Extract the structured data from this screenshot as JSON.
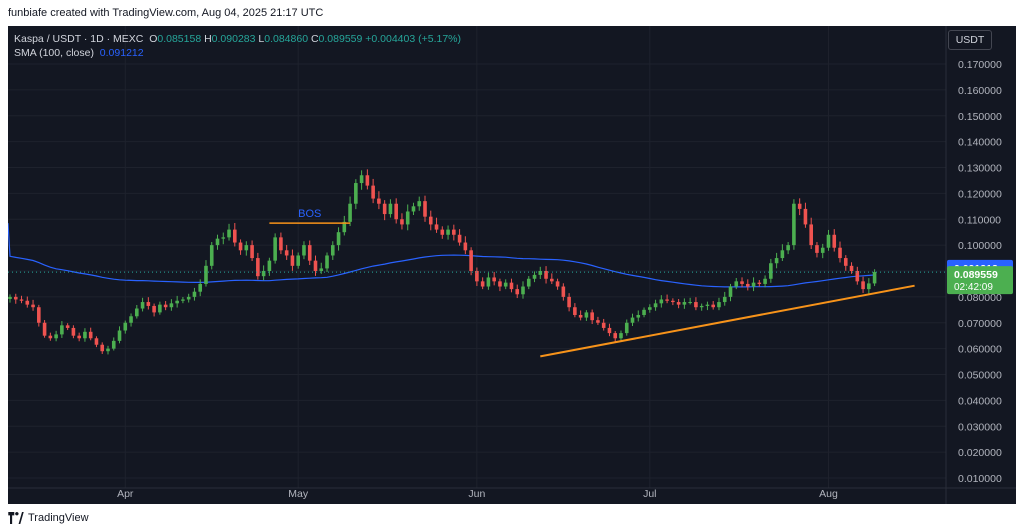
{
  "header": {
    "credit": "funbiafe created with TradingView.com, Aug 04, 2025 21:17 UTC"
  },
  "footer": {
    "brand": "TradingView"
  },
  "legend": {
    "symbol": "Kaspa / USDT · 1D · MEXC",
    "open_label": "O",
    "open": "0.085158",
    "high_label": "H",
    "high": "0.090283",
    "low_label": "L",
    "low": "0.084860",
    "close_label": "C",
    "close": "0.089559",
    "change": "+0.004403 (+5.17%)",
    "sma_label": "SMA (100, close)",
    "sma_value": "0.091212"
  },
  "currency": "USDT",
  "colors": {
    "background": "#131722",
    "up": "#26a69a",
    "up_body": "#4caf50",
    "down": "#ef5350",
    "sma": "#2962ff",
    "trendline": "#f7931a",
    "bos_line": "#f7931a",
    "bos_text": "#2962ff",
    "grid": "#1e222d"
  },
  "chart_data": {
    "type": "candlestick",
    "symbol": "Kaspa / USDT",
    "timeframe": "1D",
    "exchange": "MEXC",
    "y_axis": {
      "ticks": [
        "0.170000",
        "0.160000",
        "0.150000",
        "0.140000",
        "0.130000",
        "0.120000",
        "0.110000",
        "0.100000",
        "0.090000",
        "0.080000",
        "0.070000",
        "0.060000",
        "0.050000",
        "0.040000",
        "0.030000",
        "0.020000",
        "0.010000"
      ],
      "ylim": [
        0.01,
        0.175
      ]
    },
    "x_axis": {
      "labels": [
        "Apr",
        "May",
        "Jun",
        "Jul",
        "Aug"
      ],
      "range_dates": [
        "2025-03-12",
        "2025-08-20"
      ],
      "label_dates": [
        "2025-04-01",
        "2025-05-01",
        "2025-06-01",
        "2025-07-01",
        "2025-08-01"
      ]
    },
    "last_price": {
      "value": "0.089559",
      "countdown": "02:42:09"
    },
    "sma_price": {
      "value": "0.091212"
    },
    "annotations": [
      {
        "text": "BOS",
        "level": 0.1085,
        "from": "2025-04-26",
        "to": "2025-05-10"
      }
    ],
    "trendline": {
      "from": [
        "2025-06-12",
        0.057
      ],
      "to": [
        "2025-08-09",
        0.082
      ]
    },
    "closes": [
      [
        "2025-03-12",
        0.08
      ],
      [
        "2025-03-13",
        0.079
      ],
      [
        "2025-03-14",
        0.0785
      ],
      [
        "2025-03-15",
        0.077
      ],
      [
        "2025-03-16",
        0.076
      ],
      [
        "2025-03-17",
        0.07
      ],
      [
        "2025-03-18",
        0.065
      ],
      [
        "2025-03-19",
        0.064
      ],
      [
        "2025-03-20",
        0.0655
      ],
      [
        "2025-03-21",
        0.069
      ],
      [
        "2025-03-22",
        0.068
      ],
      [
        "2025-03-23",
        0.065
      ],
      [
        "2025-03-24",
        0.064
      ],
      [
        "2025-03-25",
        0.0665
      ],
      [
        "2025-03-26",
        0.064
      ],
      [
        "2025-03-27",
        0.0615
      ],
      [
        "2025-03-28",
        0.059
      ],
      [
        "2025-03-29",
        0.06
      ],
      [
        "2025-03-30",
        0.063
      ],
      [
        "2025-03-31",
        0.067
      ],
      [
        "2025-04-01",
        0.07
      ],
      [
        "2025-04-02",
        0.0725
      ],
      [
        "2025-04-03",
        0.0755
      ],
      [
        "2025-04-04",
        0.078
      ],
      [
        "2025-04-05",
        0.0765
      ],
      [
        "2025-04-06",
        0.074
      ],
      [
        "2025-04-07",
        0.077
      ],
      [
        "2025-04-08",
        0.076
      ],
      [
        "2025-04-09",
        0.0775
      ],
      [
        "2025-04-10",
        0.0785
      ],
      [
        "2025-04-11",
        0.079
      ],
      [
        "2025-04-12",
        0.08
      ],
      [
        "2025-04-13",
        0.082
      ],
      [
        "2025-04-14",
        0.085
      ],
      [
        "2025-04-15",
        0.092
      ],
      [
        "2025-04-16",
        0.1
      ],
      [
        "2025-04-17",
        0.1025
      ],
      [
        "2025-04-18",
        0.103
      ],
      [
        "2025-04-19",
        0.106
      ],
      [
        "2025-04-20",
        0.101
      ],
      [
        "2025-04-21",
        0.098
      ],
      [
        "2025-04-22",
        0.1
      ],
      [
        "2025-04-23",
        0.095
      ],
      [
        "2025-04-24",
        0.088
      ],
      [
        "2025-04-25",
        0.09
      ],
      [
        "2025-04-26",
        0.094
      ],
      [
        "2025-04-27",
        0.103
      ],
      [
        "2025-04-28",
        0.098
      ],
      [
        "2025-04-29",
        0.096
      ],
      [
        "2025-04-30",
        0.092
      ],
      [
        "2025-05-01",
        0.096
      ],
      [
        "2025-05-02",
        0.1
      ],
      [
        "2025-05-03",
        0.094
      ],
      [
        "2025-05-04",
        0.09
      ],
      [
        "2025-05-05",
        0.091
      ],
      [
        "2025-05-06",
        0.096
      ],
      [
        "2025-05-07",
        0.1
      ],
      [
        "2025-05-08",
        0.105
      ],
      [
        "2025-05-09",
        0.109
      ],
      [
        "2025-05-10",
        0.116
      ],
      [
        "2025-05-11",
        0.124
      ],
      [
        "2025-05-12",
        0.127
      ],
      [
        "2025-05-13",
        0.123
      ],
      [
        "2025-05-14",
        0.118
      ],
      [
        "2025-05-15",
        0.116
      ],
      [
        "2025-05-16",
        0.112
      ],
      [
        "2025-05-17",
        0.116
      ],
      [
        "2025-05-18",
        0.11
      ],
      [
        "2025-05-19",
        0.108
      ],
      [
        "2025-05-20",
        0.113
      ],
      [
        "2025-05-21",
        0.115
      ],
      [
        "2025-05-22",
        0.117
      ],
      [
        "2025-05-23",
        0.111
      ],
      [
        "2025-05-24",
        0.108
      ],
      [
        "2025-05-25",
        0.106
      ],
      [
        "2025-05-26",
        0.104
      ],
      [
        "2025-05-27",
        0.106
      ],
      [
        "2025-05-28",
        0.104
      ],
      [
        "2025-05-29",
        0.101
      ],
      [
        "2025-05-30",
        0.098
      ],
      [
        "2025-05-31",
        0.09
      ],
      [
        "2025-06-01",
        0.086
      ],
      [
        "2025-06-02",
        0.084
      ],
      [
        "2025-06-03",
        0.0875
      ],
      [
        "2025-06-04",
        0.086
      ],
      [
        "2025-06-05",
        0.084
      ],
      [
        "2025-06-06",
        0.0855
      ],
      [
        "2025-06-07",
        0.083
      ],
      [
        "2025-06-08",
        0.081
      ],
      [
        "2025-06-09",
        0.084
      ],
      [
        "2025-06-10",
        0.087
      ],
      [
        "2025-06-11",
        0.0885
      ],
      [
        "2025-06-12",
        0.09
      ],
      [
        "2025-06-13",
        0.087
      ],
      [
        "2025-06-14",
        0.086
      ],
      [
        "2025-06-15",
        0.084
      ],
      [
        "2025-06-16",
        0.08
      ],
      [
        "2025-06-17",
        0.076
      ],
      [
        "2025-06-18",
        0.073
      ],
      [
        "2025-06-19",
        0.072
      ],
      [
        "2025-06-20",
        0.074
      ],
      [
        "2025-06-21",
        0.071
      ],
      [
        "2025-06-22",
        0.07
      ],
      [
        "2025-06-23",
        0.068
      ],
      [
        "2025-06-24",
        0.066
      ],
      [
        "2025-06-25",
        0.064
      ],
      [
        "2025-06-26",
        0.066
      ],
      [
        "2025-06-27",
        0.07
      ],
      [
        "2025-06-28",
        0.072
      ],
      [
        "2025-06-29",
        0.073
      ],
      [
        "2025-06-30",
        0.075
      ],
      [
        "2025-07-01",
        0.076
      ],
      [
        "2025-07-02",
        0.0775
      ],
      [
        "2025-07-03",
        0.079
      ],
      [
        "2025-07-04",
        0.0785
      ],
      [
        "2025-07-05",
        0.078
      ],
      [
        "2025-07-06",
        0.077
      ],
      [
        "2025-07-07",
        0.078
      ],
      [
        "2025-07-08",
        0.078
      ],
      [
        "2025-07-09",
        0.076
      ],
      [
        "2025-07-10",
        0.0765
      ],
      [
        "2025-07-11",
        0.077
      ],
      [
        "2025-07-12",
        0.076
      ],
      [
        "2025-07-13",
        0.078
      ],
      [
        "2025-07-14",
        0.08
      ],
      [
        "2025-07-15",
        0.084
      ],
      [
        "2025-07-16",
        0.086
      ],
      [
        "2025-07-17",
        0.085
      ],
      [
        "2025-07-18",
        0.084
      ],
      [
        "2025-07-19",
        0.0855
      ],
      [
        "2025-07-20",
        0.085
      ],
      [
        "2025-07-21",
        0.087
      ],
      [
        "2025-07-22",
        0.093
      ],
      [
        "2025-07-23",
        0.095
      ],
      [
        "2025-07-24",
        0.098
      ],
      [
        "2025-07-25",
        0.1
      ],
      [
        "2025-07-26",
        0.116
      ],
      [
        "2025-07-27",
        0.114
      ],
      [
        "2025-07-28",
        0.108
      ],
      [
        "2025-07-29",
        0.1
      ],
      [
        "2025-07-30",
        0.097
      ],
      [
        "2025-07-31",
        0.099
      ],
      [
        "2025-08-01",
        0.104
      ],
      [
        "2025-08-02",
        0.099
      ],
      [
        "2025-08-03",
        0.095
      ],
      [
        "2025-08-04",
        0.092
      ],
      [
        "2025-08-05",
        0.09
      ],
      [
        "2025-08-06",
        0.086
      ],
      [
        "2025-08-07",
        0.083
      ],
      [
        "2025-08-08",
        0.0852
      ],
      [
        "2025-08-09",
        0.0896
      ]
    ]
  }
}
